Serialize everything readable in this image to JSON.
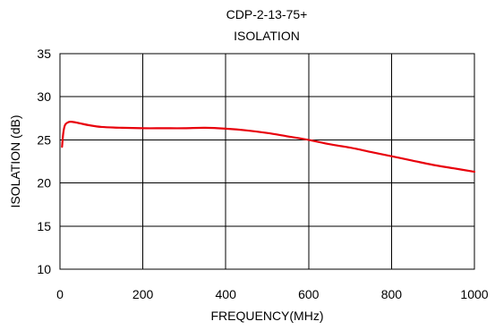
{
  "chart_data": {
    "type": "line",
    "title": "CDP-2-13-75+",
    "subtitle": "ISOLATION",
    "xlabel": "FREQUENCY(MHz)",
    "ylabel": "ISOLATION (dB)",
    "xlim": [
      0,
      1000
    ],
    "ylim": [
      10,
      35
    ],
    "xticks": [
      0,
      200,
      400,
      600,
      800,
      1000
    ],
    "yticks": [
      10,
      15,
      20,
      25,
      30,
      35
    ],
    "xtick_labels": [
      "0",
      "200",
      "400",
      "600",
      "800",
      "1000"
    ],
    "ytick_labels": [
      "10",
      "15",
      "20",
      "25",
      "30",
      "35"
    ],
    "grid": true,
    "legend": "none",
    "series": [
      {
        "color": "#e8000b",
        "x": [
          5,
          8,
          12,
          18,
          25,
          35,
          50,
          70,
          100,
          150,
          200,
          250,
          300,
          350,
          400,
          450,
          500,
          550,
          600,
          650,
          700,
          750,
          800,
          850,
          900,
          950,
          1000
        ],
        "y": [
          24.2,
          25.8,
          26.7,
          27.0,
          27.1,
          27.05,
          26.9,
          26.7,
          26.5,
          26.4,
          26.35,
          26.35,
          26.35,
          26.4,
          26.3,
          26.1,
          25.8,
          25.4,
          25.0,
          24.5,
          24.1,
          23.6,
          23.1,
          22.6,
          22.1,
          21.7,
          21.3
        ]
      }
    ]
  }
}
